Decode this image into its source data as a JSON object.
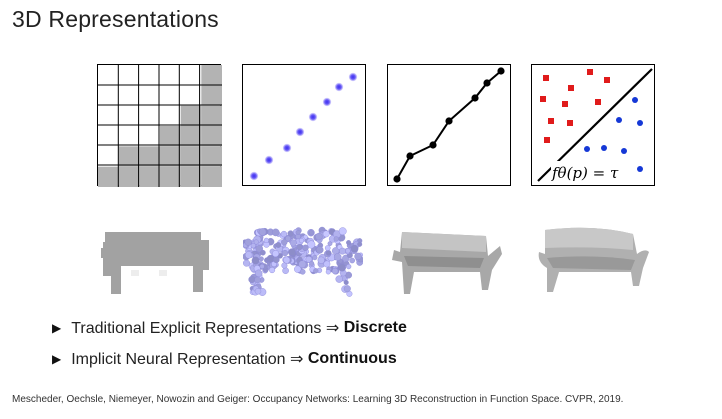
{
  "slide": {
    "title": "3D Representations"
  },
  "panels": {
    "formula": "fθ(p) = τ"
  },
  "bullets": [
    {
      "text": "Traditional Explicit Representations ⇒ ",
      "bold": "Discrete"
    },
    {
      "text": "Implicit Neural Representation ⇒ ",
      "bold": "Continuous"
    }
  ],
  "citation": "Mescheder, Oechsle, Niemeyer, Nowozin and Geiger: Occupancy Networks: Learning 3D Reconstruction in Function Space. CVPR, 2019.",
  "colors": {
    "voxel_fill": "#b3b3b3",
    "points": "#5a4cf0",
    "red_class": "#e01b1b",
    "blue_class": "#1538d6",
    "bench": "#a9a9a9"
  }
}
